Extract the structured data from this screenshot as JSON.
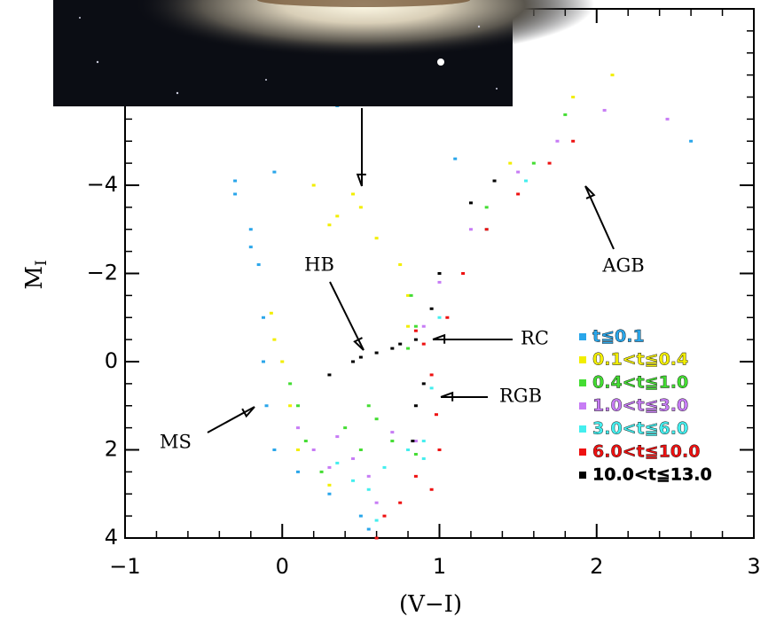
{
  "chart_data": {
    "type": "scatter",
    "xlabel": "(V−I)",
    "ylabel": "MI",
    "xlim": [
      -1,
      3
    ],
    "ylim": [
      4,
      -8
    ],
    "xticks": [
      {
        "value": -1,
        "label": "−1"
      },
      0,
      1,
      2,
      3
    ],
    "yticks": [
      {
        "value": -4,
        "label": "−4"
      },
      {
        "value": -2,
        "label": "−2"
      },
      0,
      2,
      4
    ],
    "annotations": [
      "HB",
      "RC",
      "RGB",
      "MS",
      "AGB"
    ],
    "series": [
      {
        "name": "t≦0.1",
        "color": "#2aa6ea",
        "x": [
          -0.3,
          -0.3,
          -0.2,
          -0.2,
          -0.15,
          -0.05,
          0.35,
          1.1,
          -0.12,
          -0.12,
          -0.1,
          -0.05,
          0.1,
          0.3,
          0.5,
          0.55,
          2.6
        ],
        "values": [
          -4.1,
          -3.8,
          -3.0,
          -2.6,
          -2.2,
          -4.3,
          -5.8,
          -4.6,
          -1.0,
          0.0,
          1.0,
          2.0,
          2.5,
          3.0,
          3.5,
          3.8,
          -5.0
        ]
      },
      {
        "name": "0.1<t≦0.4",
        "color": "#f2ee00",
        "x": [
          -0.07,
          -0.05,
          0.0,
          0.05,
          0.1,
          0.3,
          0.2,
          0.35,
          0.5,
          0.6,
          0.75,
          0.8,
          0.8,
          1.45,
          1.85,
          2.1,
          0.45,
          0.3
        ],
        "values": [
          -1.1,
          -0.5,
          0.0,
          1.0,
          2.0,
          2.8,
          -4.0,
          -3.3,
          -3.5,
          -2.8,
          -2.2,
          -1.5,
          -0.8,
          -4.5,
          -6.0,
          -6.5,
          -3.8,
          -3.1
        ]
      },
      {
        "name": "0.4<t≦1.0",
        "color": "#44dd33",
        "x": [
          0.05,
          0.1,
          0.15,
          0.25,
          0.4,
          0.5,
          0.6,
          0.82,
          0.85,
          0.8,
          1.3,
          1.6,
          1.8,
          0.55,
          0.7,
          0.85
        ],
        "values": [
          0.5,
          1.0,
          1.8,
          2.5,
          1.5,
          2.0,
          1.3,
          -1.5,
          -0.8,
          -0.3,
          -3.5,
          -4.5,
          -5.6,
          1.0,
          1.8,
          2.1
        ]
      },
      {
        "name": "1.0<t≦3.0",
        "color": "#c77cf5",
        "x": [
          0.1,
          0.2,
          0.3,
          0.45,
          0.55,
          0.35,
          0.7,
          0.85,
          0.9,
          1.0,
          1.2,
          1.5,
          1.75,
          2.05,
          2.45,
          0.6
        ],
        "values": [
          1.5,
          2.0,
          2.4,
          2.2,
          2.6,
          1.7,
          1.6,
          1.8,
          -0.8,
          -1.8,
          -3.0,
          -4.3,
          -5.0,
          -5.7,
          -5.5,
          3.2
        ]
      },
      {
        "name": "3.0<t≦6.0",
        "color": "#44eeee",
        "x": [
          0.35,
          0.45,
          0.55,
          0.65,
          0.8,
          0.9,
          0.95,
          1.0,
          1.3,
          1.55,
          0.6,
          0.9
        ],
        "values": [
          2.3,
          2.7,
          2.9,
          2.4,
          2.0,
          1.8,
          0.6,
          -1.0,
          -3.0,
          -4.1,
          3.6,
          2.2
        ]
      },
      {
        "name": "6.0<t≦10.0",
        "color": "#ee1111",
        "x": [
          0.85,
          0.9,
          0.95,
          0.98,
          1.0,
          0.75,
          0.65,
          0.6,
          1.05,
          1.15,
          1.3,
          1.5,
          1.7,
          1.85,
          0.95,
          0.85
        ],
        "values": [
          -0.7,
          -0.4,
          0.3,
          1.2,
          2.0,
          3.2,
          3.5,
          4.0,
          -1.0,
          -2.0,
          -3.0,
          -3.8,
          -4.5,
          -5.0,
          2.9,
          2.6
        ]
      },
      {
        "name": "10.0<t≦13.0",
        "color": "#000000",
        "x": [
          0.3,
          0.45,
          0.6,
          0.75,
          0.85,
          0.9,
          0.85,
          0.83,
          1.0,
          1.2,
          1.35,
          0.95,
          0.5,
          0.7
        ],
        "values": [
          0.3,
          0.0,
          -0.2,
          -0.4,
          -0.5,
          0.5,
          1.0,
          1.8,
          -2.0,
          -3.6,
          -4.1,
          -1.2,
          -0.1,
          -0.3
        ]
      }
    ]
  }
}
